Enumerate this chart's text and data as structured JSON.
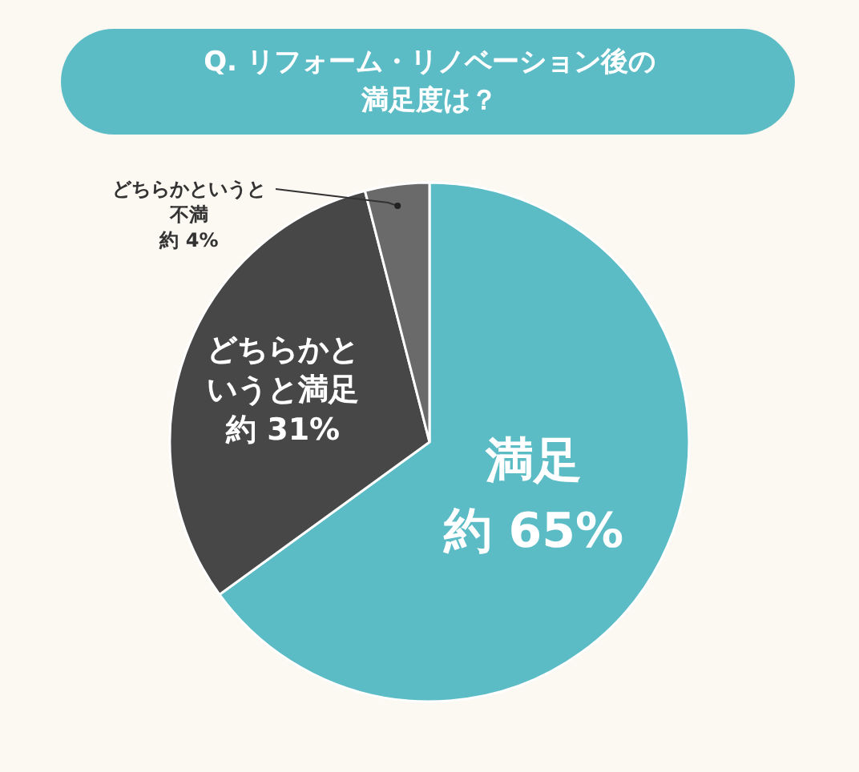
{
  "chart_data": {
    "type": "pie",
    "title": "Q. リフォーム・リノベーション後の満足度は？",
    "categories": [
      "満足",
      "どちらかというと満足",
      "どちらかというと不満"
    ],
    "values": [
      65,
      31,
      4
    ],
    "colors": [
      "#5bbcc6",
      "#474747",
      "#6a6a6a"
    ],
    "value_labels": [
      "約 65%",
      "約 31%",
      "約 4%"
    ]
  }
}
